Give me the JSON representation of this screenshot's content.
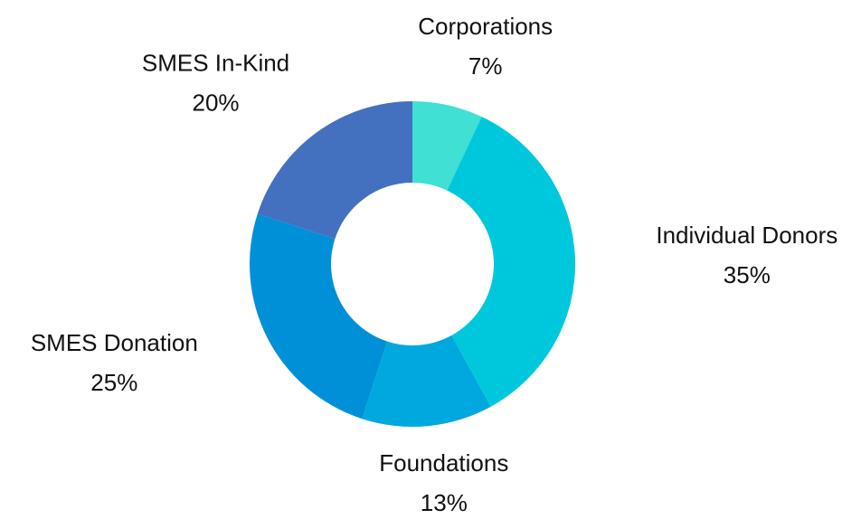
{
  "chart_data": {
    "type": "donut",
    "categories": [
      "Corporations",
      "Individual Donors",
      "Foundations",
      "SMES Donation",
      "SMES In-Kind"
    ],
    "values": [
      7,
      35,
      13,
      25,
      20
    ],
    "value_labels": [
      "7%",
      "35%",
      "13%",
      "25%",
      "20%"
    ],
    "colors": [
      "#40e0d4",
      "#00c8dc",
      "#00a8e0",
      "#0090d8",
      "#4470c0"
    ]
  }
}
